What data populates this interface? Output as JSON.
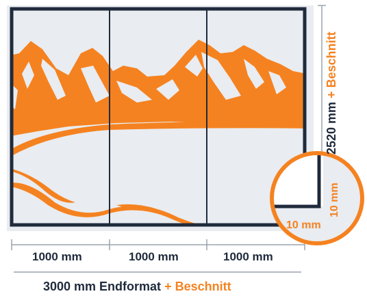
{
  "panels": [
    {
      "label": "1000 mm"
    },
    {
      "label": "1000 mm"
    },
    {
      "label": "1000 mm"
    }
  ],
  "total_width": {
    "value": "3000 mm Endformat",
    "suffix": "+ Beschnitt"
  },
  "height": {
    "value": "2520 mm",
    "suffix": "+ Beschnitt"
  },
  "bleed_detail": {
    "horizontal": "10 mm",
    "vertical": "10 mm"
  },
  "colors": {
    "accent": "#f58220",
    "frame": "#1f2a3c",
    "background": "#e9ecf0"
  },
  "image_subject": "mountain-landscape-icon"
}
